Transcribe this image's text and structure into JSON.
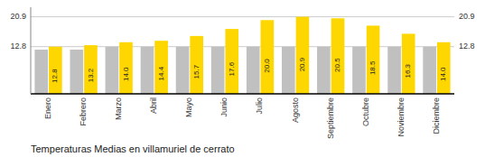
{
  "chart_data": {
    "type": "bar",
    "title": "Temperaturas Medias en villamuriel de cerrato",
    "categories": [
      "Enero",
      "Febrero",
      "Marzo",
      "Abril",
      "Mayo",
      "Junio",
      "Julio",
      "Agosto",
      "Septiembre",
      "Octubre",
      "Noviembre",
      "Diciembre"
    ],
    "series": [
      {
        "color": "#C0C0C0",
        "values": [
          12.0,
          12.0,
          12.8,
          12.8,
          12.8,
          12.8,
          12.8,
          12.8,
          12.8,
          12.8,
          12.8,
          12.8
        ]
      },
      {
        "color": "#FFD700",
        "values": [
          12.8,
          13.2,
          14.0,
          14.4,
          15.7,
          17.6,
          20.0,
          20.9,
          20.5,
          18.5,
          16.3,
          14.0
        ],
        "value_labels": [
          "12.8",
          "13.2",
          "14.0",
          "14.4",
          "15.7",
          "17.6",
          "20.0",
          "20.9",
          "20.5",
          "18.5",
          "16.3",
          "14.0"
        ]
      }
    ],
    "ylim": [
      0.0,
      23.5
    ],
    "yticks": [
      12.8,
      20.9
    ],
    "grid": true,
    "data_labels": true
  }
}
